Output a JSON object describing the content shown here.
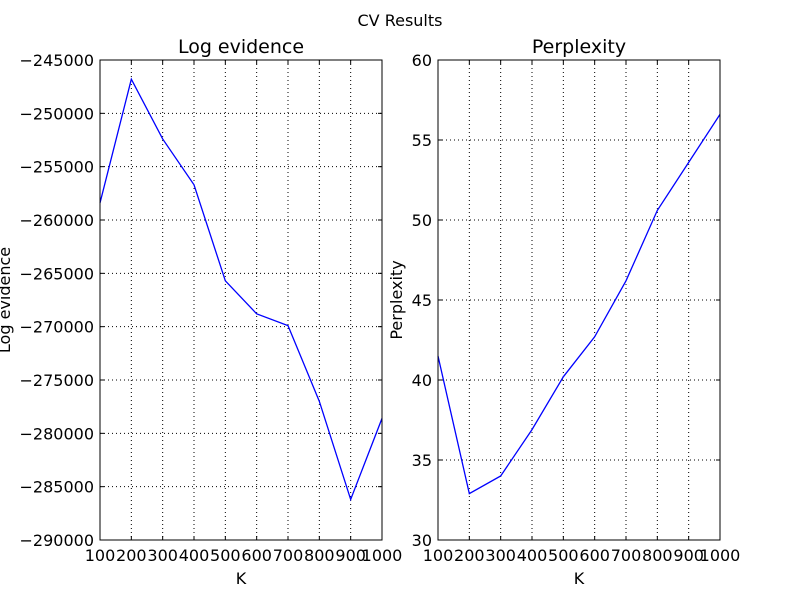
{
  "figure": {
    "title": "CV Results"
  },
  "chart_data": [
    {
      "type": "line",
      "title": "Log evidence",
      "xlabel": "K",
      "ylabel": "Log evidence",
      "xlim": [
        100,
        1000
      ],
      "ylim": [
        -290000,
        -245000
      ],
      "x": [
        100,
        200,
        300,
        400,
        500,
        600,
        700,
        800,
        900,
        1000
      ],
      "xticks": [
        100,
        200,
        300,
        400,
        500,
        600,
        700,
        800,
        900,
        1000
      ],
      "xtick_labels": [
        "100",
        "200",
        "300",
        "400",
        "500",
        "600",
        "700",
        "800",
        "900",
        "1000"
      ],
      "yticks": [
        -290000,
        -285000,
        -280000,
        -275000,
        -270000,
        -265000,
        -260000,
        -255000,
        -250000,
        -245000
      ],
      "ytick_labels": [
        "−290000",
        "−285000",
        "−280000",
        "−275000",
        "−270000",
        "−265000",
        "−260000",
        "−255000",
        "−250000",
        "−245000"
      ],
      "grid": true,
      "series": [
        {
          "color": "#0000ff",
          "values": [
            -258400,
            -246800,
            -252400,
            -256700,
            -265700,
            -268800,
            -269900,
            -277000,
            -286200,
            -278600
          ]
        }
      ]
    },
    {
      "type": "line",
      "title": "Perplexity",
      "xlabel": "K",
      "ylabel": "Perplexity",
      "xlim": [
        100,
        1000
      ],
      "ylim": [
        30,
        60
      ],
      "x": [
        100,
        200,
        300,
        400,
        500,
        600,
        700,
        800,
        900,
        1000
      ],
      "xticks": [
        100,
        200,
        300,
        400,
        500,
        600,
        700,
        800,
        900,
        1000
      ],
      "xtick_labels": [
        "100",
        "200",
        "300",
        "400",
        "500",
        "600",
        "700",
        "800",
        "900",
        "1000"
      ],
      "yticks": [
        30,
        35,
        40,
        45,
        50,
        55,
        60
      ],
      "ytick_labels": [
        "30",
        "35",
        "40",
        "45",
        "50",
        "55",
        "60"
      ],
      "grid": true,
      "series": [
        {
          "color": "#0000ff",
          "values": [
            41.5,
            32.9,
            34.0,
            36.9,
            40.2,
            42.7,
            46.2,
            50.6,
            53.6,
            56.6
          ]
        }
      ]
    }
  ]
}
